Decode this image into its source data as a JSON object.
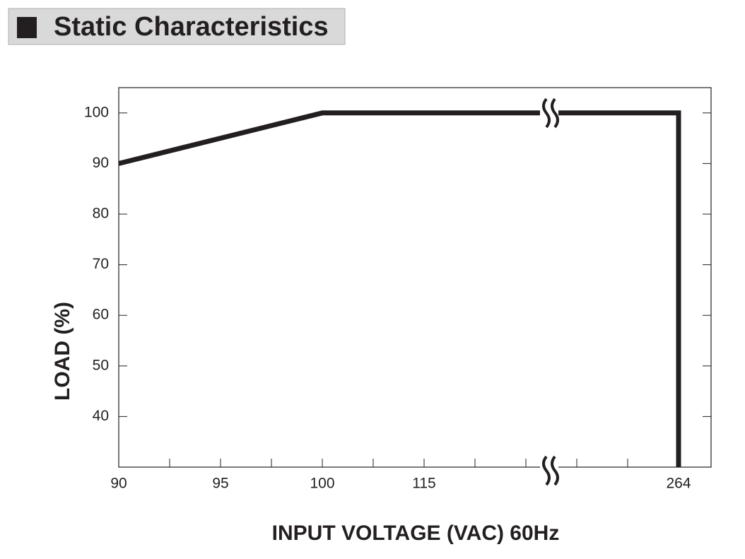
{
  "chart_data": {
    "type": "line",
    "title": "Static Characteristics",
    "x_label": "INPUT VOLTAGE (VAC) 60Hz",
    "y_label": "LOAD (%)",
    "categories": [
      "90",
      null,
      "95",
      null,
      "100",
      null,
      "115",
      null,
      null,
      null,
      null,
      "264"
    ],
    "series": [
      {
        "x": [
          "90",
          "100",
          "264",
          "264"
        ],
        "values": [
          90,
          100,
          100,
          30
        ],
        "color": "#231f20"
      }
    ],
    "ylim": [
      30,
      105
    ],
    "yticks": [
      40,
      50,
      60,
      70,
      80,
      90,
      100
    ],
    "grid": false
  }
}
